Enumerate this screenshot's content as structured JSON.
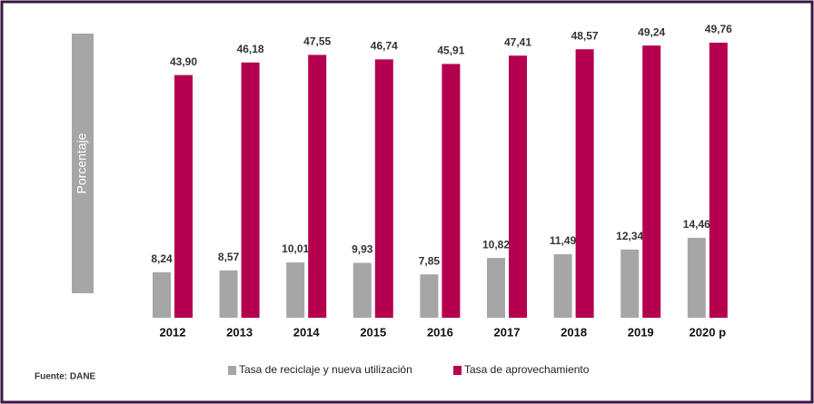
{
  "chart_data": {
    "type": "bar",
    "y_label": "Porcentaje",
    "source": "Fuente: DANE",
    "categories": [
      "2012",
      "2013",
      "2014",
      "2015",
      "2016",
      "2017",
      "2018",
      "2019",
      "2020 p"
    ],
    "series": [
      {
        "name": "Tasa de reciclaje y nueva utilización",
        "color": "#a6a6a6",
        "values": [
          8.24,
          8.57,
          10.01,
          9.93,
          7.85,
          10.82,
          11.49,
          12.34,
          14.46
        ],
        "value_labels": [
          "8,24",
          "8,57",
          "10,01",
          "9,93",
          "7,85",
          "10,82",
          "11,49",
          "12,34",
          "14,46"
        ]
      },
      {
        "name": "Tasa de aprovechamiento",
        "color": "#b5004f",
        "values": [
          43.9,
          46.18,
          47.55,
          46.74,
          45.91,
          47.41,
          48.57,
          49.24,
          49.76
        ],
        "value_labels": [
          "43,90",
          "46,18",
          "47,55",
          "46,74",
          "45,91",
          "47,41",
          "48,57",
          "49,24",
          "49,76"
        ]
      }
    ]
  }
}
